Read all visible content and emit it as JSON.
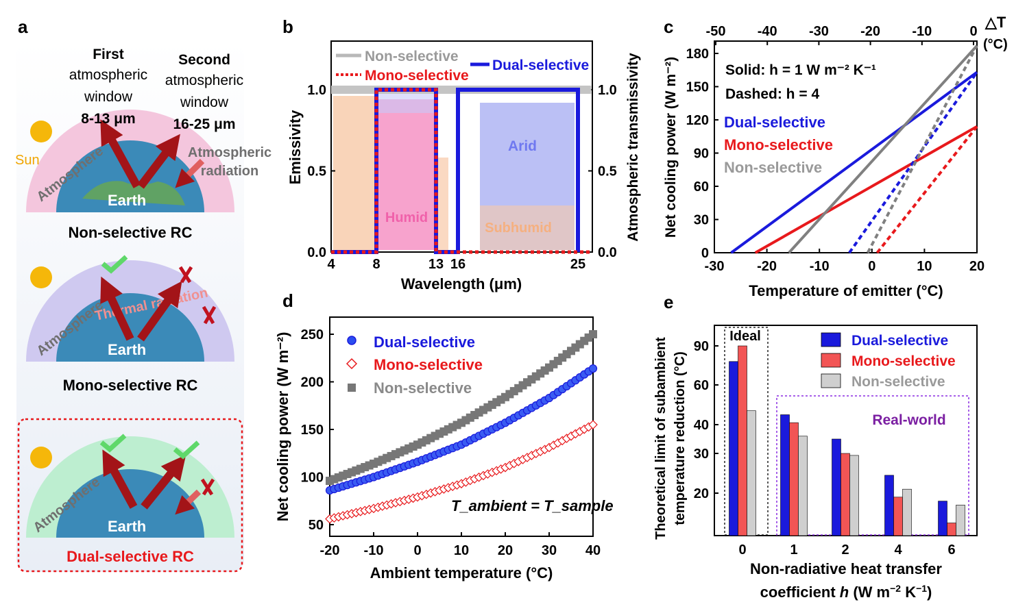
{
  "panel_letters": {
    "a": "a",
    "b": "b",
    "c": "c",
    "d": "d",
    "e": "e"
  },
  "colors": {
    "dual": "#1a1adc",
    "mono": "#e8191c",
    "non": "#808080"
  },
  "panel_a": {
    "first_title": "First",
    "first_sub1": "atmospheric",
    "first_sub2": "window",
    "first_range": "8-13 μm",
    "second_title": "Second",
    "second_sub1": "atmospheric",
    "second_sub2": "window",
    "second_range": "16-25 μm",
    "sun": "Sun",
    "atmosphere": "Atmosphere",
    "earth": "Earth",
    "atm_rad1": "Atmospheric",
    "atm_rad2": "radiation",
    "thermal": "Thermal radiation",
    "captions": [
      "Non-selective RC",
      "Mono-selective RC",
      "Dual-selective RC"
    ]
  },
  "chart_data": [
    {
      "panel": "b",
      "type": "line",
      "xlabel": "Wavelength (μm)",
      "ylabel": "Emissivity",
      "y2label": "Atmospheric transmissivity",
      "xticks": [
        "4",
        "8",
        "13",
        "16",
        "25"
      ],
      "yticks": [
        "0.0",
        "0.5",
        "1.0"
      ],
      "y2ticks": [
        "0.0",
        "0.5",
        "1.0"
      ],
      "xlim": [
        4,
        26
      ],
      "ylim": [
        0,
        1.3
      ],
      "region_labels": {
        "humid": "Humid",
        "arid": "Arid",
        "subhumid": "Subhumid"
      },
      "series": [
        {
          "name": "Non-selective",
          "x": [
            4,
            26
          ],
          "y": [
            1,
            1
          ]
        },
        {
          "name": "Mono-selective",
          "x": [
            4,
            8,
            8,
            13,
            13,
            26
          ],
          "y": [
            0,
            0,
            1,
            1,
            0,
            0
          ]
        },
        {
          "name": "Dual-selective",
          "x": [
            4,
            8,
            8,
            13,
            13,
            16,
            16,
            25,
            25
          ],
          "y": [
            0,
            0,
            1,
            1,
            0,
            0,
            1,
            1,
            0
          ]
        }
      ]
    },
    {
      "panel": "c",
      "type": "line",
      "xlabel": "Temperature of emitter (°C)",
      "ylabel": "Net cooling power (W m⁻²)",
      "x2label": "△T",
      "x2unit": "(°C)",
      "xticks": [
        "-30",
        "-20",
        "-10",
        "0",
        "10",
        "20"
      ],
      "x2ticks": [
        "-50",
        "-40",
        "-30",
        "-20",
        "-10",
        "0"
      ],
      "yticks": [
        "0",
        "30",
        "60",
        "90",
        "120",
        "150",
        "180"
      ],
      "xlim": [
        -30,
        20
      ],
      "ylim": [
        0,
        190
      ],
      "annotations": [
        "Solid: h = 1 W m⁻² K⁻¹",
        "Dashed: h = 4"
      ],
      "series": [
        {
          "name": "Dual-selective",
          "style": "solid",
          "x": [
            -26.8,
            20
          ],
          "y": [
            0,
            163
          ]
        },
        {
          "name": "Mono-selective",
          "style": "solid",
          "x": [
            -22.2,
            20
          ],
          "y": [
            0,
            114
          ]
        },
        {
          "name": "Non-selective",
          "style": "solid",
          "x": [
            -15.8,
            20
          ],
          "y": [
            0,
            187
          ]
        },
        {
          "name": "Dual-selective",
          "style": "dashed",
          "x": [
            -4.3,
            20
          ],
          "y": [
            0,
            163
          ]
        },
        {
          "name": "Mono-selective",
          "style": "dashed",
          "x": [
            1,
            20
          ],
          "y": [
            0,
            114
          ]
        },
        {
          "name": "Non-selective",
          "style": "dashed",
          "x": [
            -0.8,
            20
          ],
          "y": [
            0,
            187
          ]
        }
      ]
    },
    {
      "panel": "d",
      "type": "scatter",
      "xlabel": "Ambient temperature (°C)",
      "ylabel": "Net cooling power (W m⁻²)",
      "xticks": [
        "-20",
        "-10",
        "0",
        "10",
        "20",
        "30",
        "40"
      ],
      "yticks": [
        "50",
        "100",
        "150",
        "200",
        "250"
      ],
      "xlim": [
        -20,
        40
      ],
      "ylim": [
        40,
        260
      ],
      "annotation": "T_ambient = T_sample",
      "series": [
        {
          "name": "Dual-selective",
          "x": [
            -20,
            -10,
            0,
            10,
            20,
            30,
            40
          ],
          "y": [
            86,
            100,
            116,
            134,
            157,
            183,
            214
          ]
        },
        {
          "name": "Mono-selective",
          "x": [
            -20,
            -10,
            0,
            10,
            20,
            30,
            40
          ],
          "y": [
            56,
            67,
            79,
            93,
            110,
            131,
            155
          ]
        },
        {
          "name": "Non-selective",
          "x": [
            -20,
            -10,
            0,
            10,
            20,
            30,
            40
          ],
          "y": [
            96,
            114,
            134,
            157,
            184,
            215,
            250
          ]
        }
      ]
    },
    {
      "panel": "e",
      "type": "bar",
      "xlabel": "Non-radiative heat transfer coefficient h (W m⁻² K⁻¹)",
      "ylabel": "Theoretical limit of subambient temperature reduction (°C)",
      "categories": [
        "0",
        "1",
        "2",
        "4",
        "6"
      ],
      "yticks": [
        "20",
        "30",
        "40",
        "60",
        "90"
      ],
      "box_labels": {
        "ideal": "Ideal",
        "real": "Real-world"
      },
      "series": [
        {
          "name": "Dual-selective",
          "values": [
            78,
            45,
            35,
            24.5,
            18
          ]
        },
        {
          "name": "Mono-selective",
          "values": [
            90,
            41,
            30,
            19,
            12.5
          ]
        },
        {
          "name": "Non-selective",
          "values": [
            47,
            36,
            29.5,
            21,
            17
          ]
        }
      ]
    }
  ]
}
